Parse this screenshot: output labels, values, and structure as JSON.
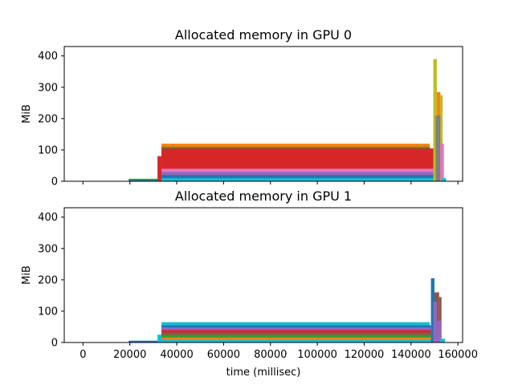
{
  "chart_data": [
    {
      "type": "area",
      "title": "Allocated memory in GPU 0",
      "ylabel": "MiB",
      "xlabel": "",
      "xlim": [
        -8000,
        162000
      ],
      "ylim": [
        0,
        430
      ],
      "xticks": [
        0,
        20000,
        40000,
        60000,
        80000,
        100000,
        120000,
        140000,
        160000
      ],
      "xtick_labels": [],
      "yticks": [
        0,
        100,
        200,
        300,
        400
      ],
      "ytick_labels": [
        "0",
        "100",
        "200",
        "300",
        "400"
      ],
      "grid": false,
      "segments": [
        {
          "color": "#2ca02c",
          "points": [
            [
              19500,
              0
            ],
            [
              19500,
              8
            ],
            [
              32000,
              8
            ],
            [
              32000,
              0
            ]
          ]
        },
        {
          "color": "#1f77b4",
          "points": [
            [
              19500,
              0
            ],
            [
              19500,
              3
            ],
            [
              32000,
              3
            ],
            [
              32000,
              0
            ]
          ]
        },
        {
          "color": "#d62728",
          "points": [
            [
              31800,
              0
            ],
            [
              31800,
              80
            ],
            [
              33500,
              80
            ],
            [
              33500,
              0
            ]
          ]
        },
        {
          "color": "#ff7f0e",
          "points": [
            [
              33500,
              0
            ],
            [
              33500,
              120
            ],
            [
              148000,
              120
            ],
            [
              148000,
              0
            ]
          ]
        },
        {
          "color": "#2ca02c",
          "points": [
            [
              33500,
              0
            ],
            [
              33500,
              110
            ],
            [
              148000,
              110
            ],
            [
              148000,
              0
            ]
          ]
        },
        {
          "color": "#d62728",
          "points": [
            [
              33500,
              0
            ],
            [
              33500,
              105
            ],
            [
              150500,
              105
            ],
            [
              150500,
              0
            ]
          ]
        },
        {
          "color": "#e377c2",
          "points": [
            [
              33500,
              0
            ],
            [
              33500,
              40
            ],
            [
              150000,
              40
            ],
            [
              150000,
              0
            ]
          ]
        },
        {
          "color": "#9467bd",
          "points": [
            [
              33500,
              0
            ],
            [
              33500,
              30
            ],
            [
              149500,
              30
            ],
            [
              149500,
              0
            ]
          ]
        },
        {
          "color": "#1f77b4",
          "points": [
            [
              33500,
              0
            ],
            [
              33500,
              20
            ],
            [
              149500,
              20
            ],
            [
              149500,
              0
            ]
          ]
        },
        {
          "color": "#17becf",
          "points": [
            [
              33500,
              0
            ],
            [
              33500,
              10
            ],
            [
              149500,
              10
            ],
            [
              149500,
              0
            ]
          ]
        },
        {
          "color": "#bcbd22",
          "points": [
            [
              149500,
              0
            ],
            [
              149500,
              390
            ],
            [
              151000,
              390
            ],
            [
              151000,
              0
            ]
          ]
        },
        {
          "color": "#ff7f0e",
          "points": [
            [
              151000,
              0
            ],
            [
              151000,
              285
            ],
            [
              152500,
              285
            ],
            [
              152500,
              0
            ]
          ]
        },
        {
          "color": "#bcbd22",
          "points": [
            [
              152500,
              0
            ],
            [
              152500,
              275
            ],
            [
              153500,
              275
            ],
            [
              153500,
              0
            ]
          ]
        },
        {
          "color": "#7f7f7f",
          "points": [
            [
              150500,
              0
            ],
            [
              150500,
              210
            ],
            [
              152500,
              210
            ],
            [
              152500,
              0
            ]
          ]
        },
        {
          "color": "#e377c2",
          "points": [
            [
              152500,
              0
            ],
            [
              152500,
              120
            ],
            [
              154000,
              120
            ],
            [
              154000,
              0
            ]
          ]
        },
        {
          "color": "#17becf",
          "points": [
            [
              153000,
              0
            ],
            [
              153000,
              10
            ],
            [
              155000,
              10
            ],
            [
              155000,
              0
            ]
          ]
        }
      ]
    },
    {
      "type": "area",
      "title": "Allocated memory in GPU 1",
      "ylabel": "MiB",
      "xlabel": "time (millisec)",
      "xlim": [
        -8000,
        162000
      ],
      "ylim": [
        0,
        430
      ],
      "xticks": [
        0,
        20000,
        40000,
        60000,
        80000,
        100000,
        120000,
        140000,
        160000
      ],
      "xtick_labels": [
        "0",
        "20000",
        "40000",
        "60000",
        "80000",
        "100000",
        "120000",
        "140000",
        "160000"
      ],
      "yticks": [
        0,
        100,
        200,
        300,
        400
      ],
      "ytick_labels": [
        "0",
        "100",
        "200",
        "300",
        "400"
      ],
      "grid": false,
      "segments": [
        {
          "color": "#1f77b4",
          "points": [
            [
              19500,
              0
            ],
            [
              19500,
              6
            ],
            [
              32000,
              6
            ],
            [
              32000,
              0
            ]
          ]
        },
        {
          "color": "#17becf",
          "points": [
            [
              31800,
              0
            ],
            [
              31800,
              25
            ],
            [
              33500,
              25
            ],
            [
              33500,
              0
            ]
          ]
        },
        {
          "color": "#17becf",
          "points": [
            [
              33500,
              0
            ],
            [
              33500,
              65
            ],
            [
              148000,
              65
            ],
            [
              148000,
              0
            ]
          ]
        },
        {
          "color": "#1f77b4",
          "points": [
            [
              33500,
              0
            ],
            [
              33500,
              55
            ],
            [
              148500,
              55
            ],
            [
              148500,
              0
            ]
          ]
        },
        {
          "color": "#9467bd",
          "points": [
            [
              33500,
              0
            ],
            [
              33500,
              48
            ],
            [
              148500,
              48
            ],
            [
              148500,
              0
            ]
          ]
        },
        {
          "color": "#d62728",
          "points": [
            [
              33500,
              0
            ],
            [
              33500,
              40
            ],
            [
              148500,
              40
            ],
            [
              148500,
              0
            ]
          ]
        },
        {
          "color": "#8c564b",
          "points": [
            [
              33500,
              0
            ],
            [
              33500,
              32
            ],
            [
              148500,
              32
            ],
            [
              148500,
              0
            ]
          ]
        },
        {
          "color": "#2ca02c",
          "points": [
            [
              33500,
              0
            ],
            [
              33500,
              24
            ],
            [
              148500,
              24
            ],
            [
              148500,
              0
            ]
          ]
        },
        {
          "color": "#ff7f0e",
          "points": [
            [
              33500,
              0
            ],
            [
              33500,
              16
            ],
            [
              148500,
              16
            ],
            [
              148500,
              0
            ]
          ]
        },
        {
          "color": "#17becf",
          "points": [
            [
              33500,
              0
            ],
            [
              33500,
              8
            ],
            [
              148500,
              8
            ],
            [
              148500,
              0
            ]
          ]
        },
        {
          "color": "#1f77b4",
          "points": [
            [
              148500,
              0
            ],
            [
              148500,
              205
            ],
            [
              150000,
              205
            ],
            [
              150000,
              0
            ]
          ]
        },
        {
          "color": "#8c564b",
          "points": [
            [
              150000,
              0
            ],
            [
              150000,
              160
            ],
            [
              152000,
              160
            ],
            [
              152000,
              0
            ]
          ]
        },
        {
          "color": "#8c564b",
          "points": [
            [
              152000,
              0
            ],
            [
              152000,
              145
            ],
            [
              153000,
              145
            ],
            [
              153000,
              0
            ]
          ]
        },
        {
          "color": "#9467bd",
          "points": [
            [
              149500,
              0
            ],
            [
              149500,
              130
            ],
            [
              151000,
              130
            ],
            [
              151000,
              0
            ]
          ]
        },
        {
          "color": "#9467bd",
          "points": [
            [
              151000,
              0
            ],
            [
              151000,
              70
            ],
            [
              153000,
              70
            ],
            [
              153000,
              0
            ]
          ]
        },
        {
          "color": "#17becf",
          "points": [
            [
              152500,
              0
            ],
            [
              152500,
              12
            ],
            [
              154500,
              12
            ],
            [
              154500,
              0
            ]
          ]
        }
      ]
    }
  ]
}
